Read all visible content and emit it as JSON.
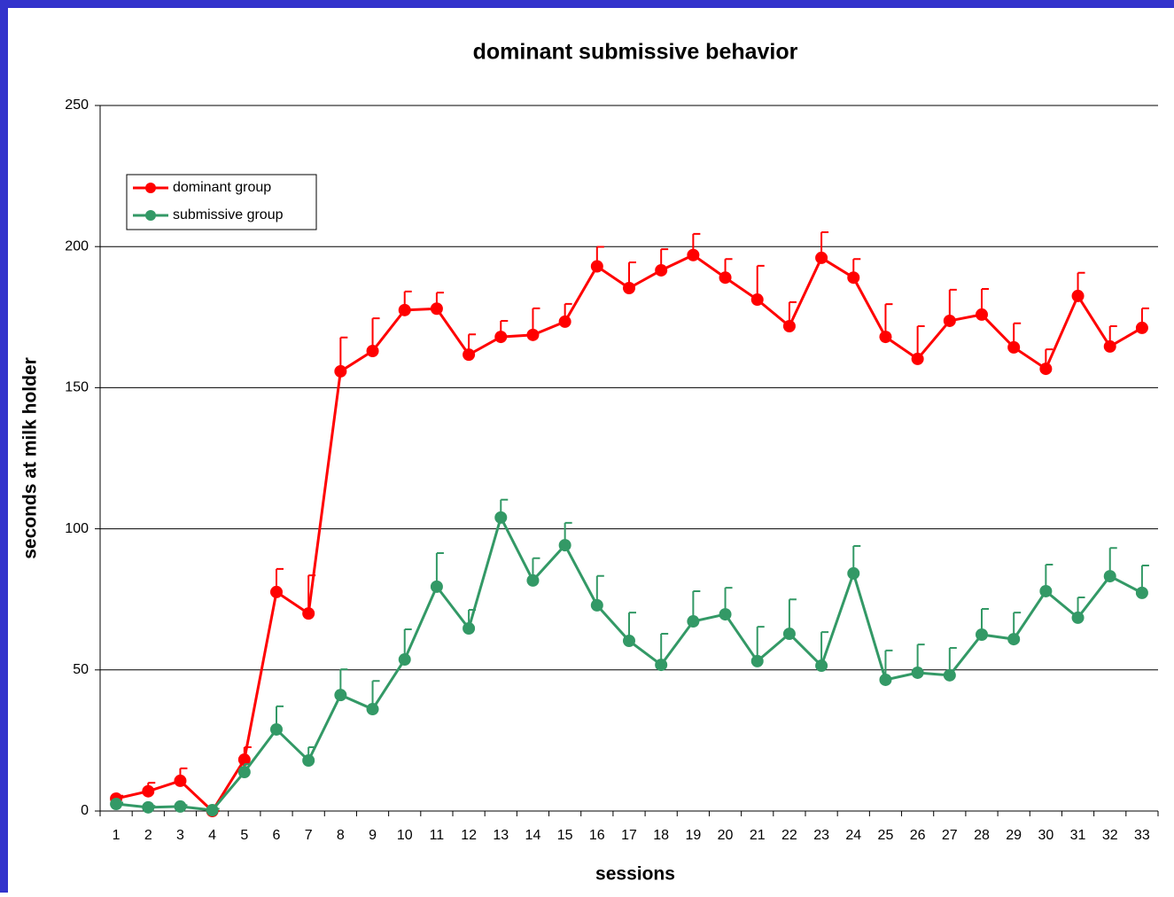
{
  "chart_data": {
    "type": "line",
    "title": "dominant submissive behavior",
    "xlabel": "sessions",
    "ylabel": "seconds at milk holder",
    "categories": [
      "1",
      "2",
      "3",
      "4",
      "5",
      "6",
      "7",
      "8",
      "9",
      "10",
      "11",
      "12",
      "13",
      "14",
      "15",
      "16",
      "17",
      "18",
      "19",
      "20",
      "21",
      "22",
      "23",
      "24",
      "25",
      "26",
      "27",
      "28",
      "29",
      "30",
      "31",
      "32",
      "33"
    ],
    "series": [
      {
        "name": "dominant group",
        "color": "#ff0000",
        "values": [
          4.4,
          7,
          10.7,
          0,
          18.2,
          77.6,
          70,
          155.8,
          163,
          177.5,
          178,
          161.7,
          168,
          168.7,
          173.4,
          193,
          185.3,
          191.6,
          197,
          189,
          181.2,
          171.8,
          196,
          189,
          168,
          160.2,
          173.7,
          175.9,
          164.3,
          156.7,
          182.5,
          164.6,
          171.2
        ],
        "errors": [
          1,
          3,
          4.4,
          0,
          4.4,
          8.2,
          13.5,
          12,
          11.6,
          6.6,
          5.7,
          7.2,
          5.7,
          9.4,
          6.3,
          6.9,
          9.1,
          7.5,
          7.5,
          6.6,
          12,
          8.5,
          9.1,
          6.6,
          11.6,
          11.6,
          11,
          9.1,
          8.5,
          6.9,
          8.2,
          7.2,
          6.9
        ]
      },
      {
        "name": "submissive group",
        "color": "#339966",
        "values": [
          2.5,
          1.3,
          1.6,
          0.3,
          13.8,
          28.9,
          17.9,
          41.1,
          36.1,
          53.7,
          79.5,
          64.7,
          104,
          81.7,
          94.2,
          72.9,
          60.3,
          51.8,
          67.2,
          69.7,
          53.1,
          62.8,
          51.5,
          84.2,
          46.5,
          49,
          48.1,
          62.5,
          60.9,
          77.9,
          68.5,
          83.2,
          77.3
        ],
        "errors": [
          0.5,
          0.5,
          0.5,
          0.5,
          2.8,
          8.2,
          4.7,
          9.1,
          10,
          10.7,
          11.9,
          6.6,
          6.3,
          7.9,
          7.9,
          10.4,
          10,
          11,
          10.7,
          9.4,
          12.2,
          12.2,
          11.9,
          9.7,
          10.4,
          10,
          9.7,
          9.1,
          9.4,
          9.4,
          7.2,
          10,
          9.7
        ]
      }
    ],
    "ylim": [
      0,
      250
    ],
    "yticks": [
      0,
      50,
      100,
      150,
      200,
      250
    ],
    "grid": true,
    "legend": "upper left"
  }
}
